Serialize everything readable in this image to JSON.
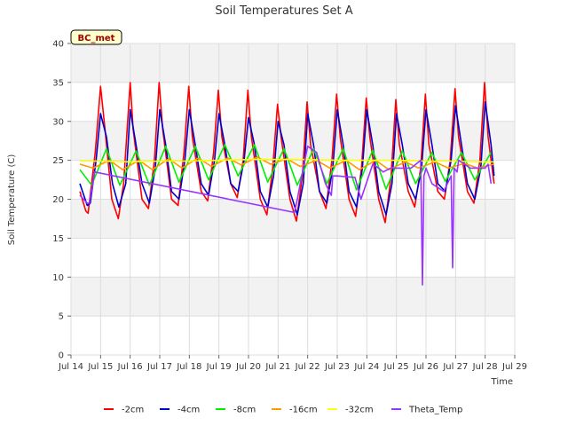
{
  "chart_data": {
    "type": "line",
    "title": "Soil Temperatures Set A",
    "xlabel": "Time",
    "ylabel": "Soil Temperature (C)",
    "badge": "BC_met",
    "ylim": [
      0,
      40
    ],
    "yticks": [
      0,
      5,
      10,
      15,
      20,
      25,
      30,
      35,
      40
    ],
    "xlim": [
      14,
      29
    ],
    "xticks": [
      {
        "x": 14,
        "label": "Jul 14"
      },
      {
        "x": 15,
        "label": "Jul 15"
      },
      {
        "x": 16,
        "label": "Jul 16"
      },
      {
        "x": 17,
        "label": "Jul 17"
      },
      {
        "x": 18,
        "label": "Jul 18"
      },
      {
        "x": 19,
        "label": "Jul 19"
      },
      {
        "x": 20,
        "label": "Jul 20"
      },
      {
        "x": 21,
        "label": "Jul 21"
      },
      {
        "x": 22,
        "label": "Jul 22"
      },
      {
        "x": 23,
        "label": "Jul 23"
      },
      {
        "x": 24,
        "label": "Jul 24"
      },
      {
        "x": 25,
        "label": "Jul 25"
      },
      {
        "x": 26,
        "label": "Jul 26"
      },
      {
        "x": 27,
        "label": "Jul 27"
      },
      {
        "x": 28,
        "label": "Jul 28"
      },
      {
        "x": 29,
        "label": "Jul 29"
      }
    ],
    "grid": true,
    "legend_position": "bottom",
    "series": [
      {
        "name": "-2cm",
        "color": "#ff0000",
        "x": [
          14.3,
          14.5,
          14.58,
          14.82,
          15.0,
          15.15,
          15.38,
          15.6,
          15.78,
          16.0,
          16.1,
          16.4,
          16.62,
          16.82,
          16.98,
          17.1,
          17.4,
          17.62,
          17.82,
          17.98,
          18.1,
          18.4,
          18.62,
          18.82,
          18.98,
          19.1,
          19.4,
          19.62,
          19.82,
          19.98,
          20.1,
          20.4,
          20.62,
          20.82,
          20.98,
          21.1,
          21.4,
          21.62,
          21.82,
          21.98,
          22.1,
          22.4,
          22.62,
          22.82,
          22.98,
          23.1,
          23.4,
          23.62,
          23.82,
          23.98,
          24.1,
          24.4,
          24.62,
          24.82,
          24.98,
          25.1,
          25.4,
          25.62,
          25.82,
          25.98,
          26.1,
          26.4,
          26.62,
          26.82,
          26.98,
          27.1,
          27.4,
          27.62,
          27.82,
          27.98,
          28.1,
          28.3
        ],
        "y": [
          21,
          18.5,
          18.2,
          26,
          34.5,
          29,
          20,
          17.5,
          22,
          35,
          29,
          20,
          18.8,
          25,
          35,
          29,
          20,
          19.2,
          26,
          34.5,
          28,
          21,
          19.8,
          26,
          34,
          28,
          22,
          20.2,
          25,
          34,
          28,
          20,
          18,
          24,
          32.2,
          28,
          20,
          17.2,
          23,
          32.5,
          27,
          21,
          18.8,
          25,
          33.5,
          28,
          20,
          17.8,
          24,
          33,
          28,
          20,
          17,
          23,
          32.8,
          27,
          21,
          19,
          24,
          33.5,
          27,
          21,
          20,
          25,
          34.2,
          28,
          21,
          19.5,
          25,
          35,
          28,
          22
        ]
      },
      {
        "name": "-4cm",
        "color": "#0000cc",
        "x": [
          14.3,
          14.55,
          14.65,
          14.85,
          15.0,
          15.2,
          15.4,
          15.62,
          15.85,
          16.0,
          16.2,
          16.4,
          16.65,
          16.85,
          17.0,
          17.2,
          17.4,
          17.65,
          17.85,
          18.0,
          18.2,
          18.4,
          18.65,
          18.85,
          19.0,
          19.2,
          19.4,
          19.65,
          19.85,
          20.0,
          20.2,
          20.4,
          20.65,
          20.85,
          21.0,
          21.2,
          21.4,
          21.65,
          21.85,
          22.0,
          22.2,
          22.4,
          22.65,
          22.85,
          23.0,
          23.2,
          23.4,
          23.65,
          23.85,
          24.0,
          24.2,
          24.4,
          24.65,
          24.85,
          25.0,
          25.2,
          25.4,
          25.65,
          25.85,
          26.0,
          26.2,
          26.4,
          26.65,
          26.85,
          27.0,
          27.2,
          27.4,
          27.65,
          27.85,
          28.0,
          28.2,
          28.3
        ],
        "y": [
          22,
          19.2,
          19.5,
          25,
          31,
          28,
          22,
          19,
          22,
          31.5,
          27,
          22,
          19.5,
          24,
          31.5,
          27,
          21,
          20,
          25,
          31.5,
          27,
          22,
          20.5,
          25,
          31,
          27,
          22,
          21,
          25,
          30.5,
          27,
          21,
          19,
          23,
          30,
          27,
          21,
          18,
          22,
          31,
          27,
          21,
          19.5,
          24,
          31.5,
          27,
          21,
          19,
          24,
          31.5,
          27,
          21,
          18,
          22,
          31,
          27,
          22,
          20,
          24,
          31.5,
          27,
          22,
          21,
          25,
          32,
          27,
          22,
          20,
          24,
          32.5,
          27,
          23
        ]
      },
      {
        "name": "-8cm",
        "color": "#00ee00",
        "x": [
          14.3,
          14.7,
          15.2,
          15.65,
          16.2,
          16.65,
          17.2,
          17.65,
          18.2,
          18.65,
          19.2,
          19.65,
          20.2,
          20.65,
          21.2,
          21.65,
          22.2,
          22.65,
          23.2,
          23.65,
          24.2,
          24.65,
          25.2,
          25.65,
          26.2,
          26.65,
          27.2,
          27.65,
          28.2
        ],
        "y": [
          23.8,
          21.8,
          26.5,
          21.8,
          26.2,
          21.8,
          26.8,
          22.2,
          26.8,
          22.5,
          27,
          23,
          27,
          22.2,
          26.5,
          21.8,
          26.5,
          22,
          26.5,
          21.2,
          26.3,
          21.3,
          26.2,
          22,
          26,
          22.3,
          26,
          22.5,
          26
        ]
      },
      {
        "name": "-16cm",
        "color": "#ff9900",
        "x": [
          14.3,
          14.75,
          15.3,
          15.75,
          16.3,
          16.75,
          17.3,
          17.75,
          18.3,
          18.75,
          19.3,
          19.75,
          20.3,
          20.75,
          21.3,
          21.75,
          22.3,
          22.75,
          23.3,
          23.75,
          24.3,
          24.75,
          25.3,
          25.75,
          26.3,
          26.75,
          27.3,
          27.75,
          28.3
        ],
        "y": [
          24.5,
          24,
          25,
          23.8,
          25,
          23.8,
          25.2,
          24,
          25.3,
          24.2,
          25.3,
          24.4,
          25.4,
          24.5,
          25.2,
          24.2,
          25,
          24,
          25,
          23.8,
          25,
          23.8,
          24.8,
          24,
          24.8,
          24,
          24.6,
          24,
          24.5
        ]
      },
      {
        "name": "-32cm",
        "color": "#ffff00",
        "x": [
          14.3,
          15.0,
          16.0,
          17.0,
          18.0,
          19.0,
          20.0,
          21.0,
          22.0,
          23.0,
          24.0,
          25.0,
          26.0,
          27.0,
          28.0,
          28.3
        ],
        "y": [
          24.9,
          24.9,
          24.8,
          24.9,
          24.9,
          25.0,
          25.1,
          25.1,
          25.1,
          25.0,
          25.0,
          25.0,
          24.9,
          24.9,
          24.8,
          24.8
        ]
      },
      {
        "name": "Theta_Temp",
        "color": "#9933ff",
        "x": [
          14.3,
          14.55,
          14.62,
          14.8,
          21.55,
          21.65,
          21.75,
          21.85,
          22.0,
          22.3,
          22.6,
          22.8,
          22.85,
          23.0,
          23.6,
          23.8,
          24.2,
          24.4,
          24.55,
          24.8,
          25.0,
          25.3,
          25.5,
          25.82,
          25.88,
          25.93,
          26.0,
          26.2,
          26.6,
          26.85,
          26.9,
          26.95,
          27.05,
          27.1,
          27.5,
          27.8,
          28.0,
          28.1,
          28.2
        ],
        "y": [
          20.5,
          19.5,
          19.5,
          23.5,
          18.3,
          20,
          22,
          24,
          26.8,
          26,
          22,
          20.5,
          23,
          23,
          22.8,
          20,
          24.5,
          24,
          23.5,
          24,
          24,
          24,
          24,
          25,
          9,
          23,
          24,
          22,
          21,
          23,
          11.2,
          24,
          23.5,
          25,
          24,
          24,
          24,
          24.5,
          22
        ]
      }
    ]
  }
}
